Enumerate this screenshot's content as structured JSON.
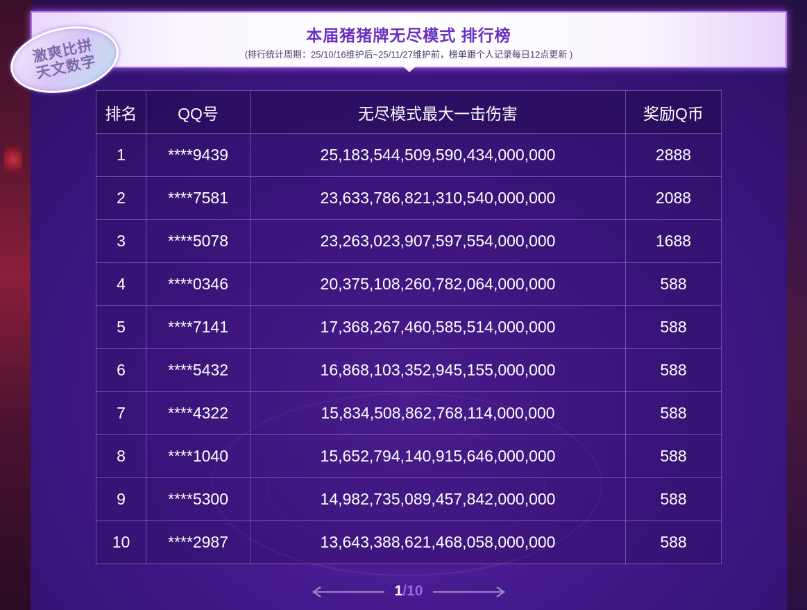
{
  "header": {
    "title": "本届猪猪牌无尽模式 排行榜",
    "subtitle": "(排行统计周期：25/10/16维护后~25/11/27维护前，榜单跟个人记录每日12点更新 )"
  },
  "badge": {
    "line1": "激爽比拼",
    "line2": "天文数字"
  },
  "table": {
    "headers": [
      "排名",
      "QQ号",
      "无尽模式最大一击伤害",
      "奖励Q币"
    ],
    "rows": [
      [
        "1",
        "****9439",
        "25,183,544,509,590,434,000,000",
        "2888"
      ],
      [
        "2",
        "****7581",
        "23,633,786,821,310,540,000,000",
        "2088"
      ],
      [
        "3",
        "****5078",
        "23,263,023,907,597,554,000,000",
        "1688"
      ],
      [
        "4",
        "****0346",
        "20,375,108,260,782,064,000,000",
        "588"
      ],
      [
        "5",
        "****7141",
        "17,368,267,460,585,514,000,000",
        "588"
      ],
      [
        "6",
        "****5432",
        "16,868,103,352,945,155,000,000",
        "588"
      ],
      [
        "7",
        "****4322",
        "15,834,508,862,768,114,000,000",
        "588"
      ],
      [
        "8",
        "****1040",
        "15,652,794,140,915,646,000,000",
        "588"
      ],
      [
        "9",
        "****5300",
        "14,982,735,089,457,842,000,000",
        "588"
      ],
      [
        "10",
        "****2987",
        "13,643,388,621,468,058,000,000",
        "588"
      ]
    ]
  },
  "pagination": {
    "current": "1",
    "total": "/10",
    "prev_icon": "arrow-left-icon",
    "next_icon": "arrow-right-icon"
  },
  "colors": {
    "title": "#6b32c2",
    "page_total": "#9a62e8",
    "panel": "#4a1c92"
  }
}
